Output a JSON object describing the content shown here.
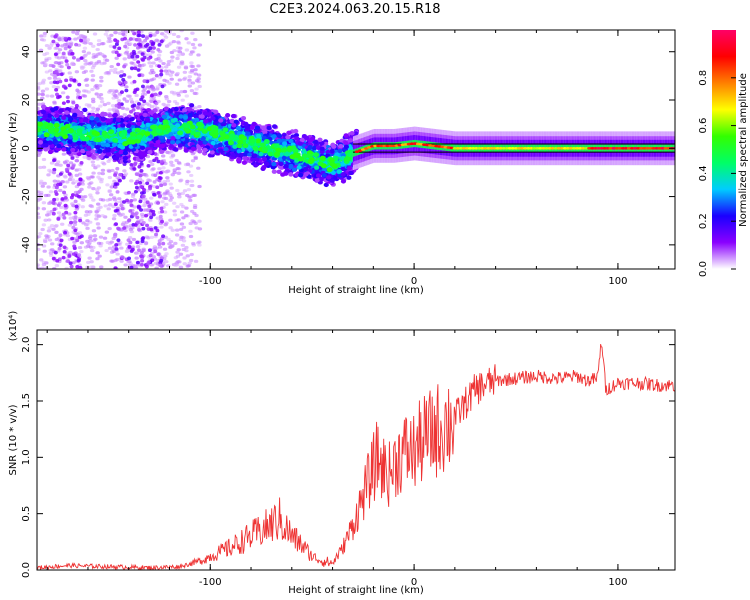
{
  "title": "C2E3.2024.063.20.15.R18",
  "colors": {
    "series_line": "#ee3333",
    "colorbar": [
      "#ffffff",
      "#8a00ff",
      "#1a00ff",
      "#00ccff",
      "#00ff66",
      "#33ff00",
      "#ffff00",
      "#ff8000",
      "#ff0000",
      "#ff0066"
    ]
  },
  "chart_data": [
    {
      "type": "heatmap",
      "xlabel": "Height of straight line (km)",
      "ylabel": "Frequency (Hz)",
      "xlim": [
        -185,
        128
      ],
      "ylim": [
        -50,
        49
      ],
      "xticks": [
        -100,
        0,
        100
      ],
      "yticks": [
        -40,
        -20,
        0,
        20,
        40
      ],
      "colorbar": {
        "label": "Normalized spectral amplitude",
        "range": [
          0,
          1
        ],
        "ticks": [
          0.0,
          0.2,
          0.4,
          0.6,
          0.8
        ]
      },
      "ridge": {
        "x": [
          -180,
          -160,
          -140,
          -120,
          -100,
          -80,
          -60,
          -40,
          -30,
          -20,
          -10,
          0,
          10,
          20,
          40,
          60,
          80,
          100,
          120
        ],
        "y": [
          8,
          6,
          4,
          9,
          7,
          2,
          -2,
          -7,
          -2,
          1,
          1,
          2,
          1,
          0,
          0,
          0,
          0,
          0,
          0
        ]
      },
      "grid": false
    },
    {
      "type": "line",
      "xlabel": "Height of straight line (km)",
      "ylabel": "SNR (10 * v/v)",
      "y_multiplier": "(x10⁴)",
      "xlim": [
        -185,
        128
      ],
      "ylim": [
        0,
        2.13
      ],
      "xticks": [
        -100,
        0,
        100
      ],
      "yticks": [
        0.0,
        0.5,
        1.0,
        1.5,
        2.0
      ],
      "series": [
        {
          "x": [
            -185,
            -170,
            -150,
            -130,
            -115,
            -105,
            -100,
            -90,
            -80,
            -72,
            -66,
            -60,
            -55,
            -50,
            -45,
            -40,
            -35,
            -30,
            -26,
            -22,
            -18,
            -15,
            -12,
            -8,
            -4,
            0,
            4,
            8,
            12,
            16,
            20,
            26,
            30,
            35,
            40,
            50,
            60,
            70,
            80,
            85,
            90,
            92,
            94,
            100,
            110,
            120,
            128
          ],
          "y": [
            0.02,
            0.04,
            0.03,
            0.02,
            0.03,
            0.08,
            0.12,
            0.2,
            0.3,
            0.38,
            0.45,
            0.3,
            0.22,
            0.12,
            0.08,
            0.06,
            0.2,
            0.4,
            0.6,
            0.8,
            1.0,
            0.9,
            0.85,
            1.0,
            1.05,
            1.05,
            1.15,
            1.2,
            1.25,
            1.3,
            1.35,
            1.5,
            1.6,
            1.65,
            1.68,
            1.7,
            1.72,
            1.7,
            1.72,
            1.68,
            1.7,
            2.05,
            1.6,
            1.66,
            1.66,
            1.64,
            1.64
          ]
        }
      ],
      "grid": false
    }
  ]
}
